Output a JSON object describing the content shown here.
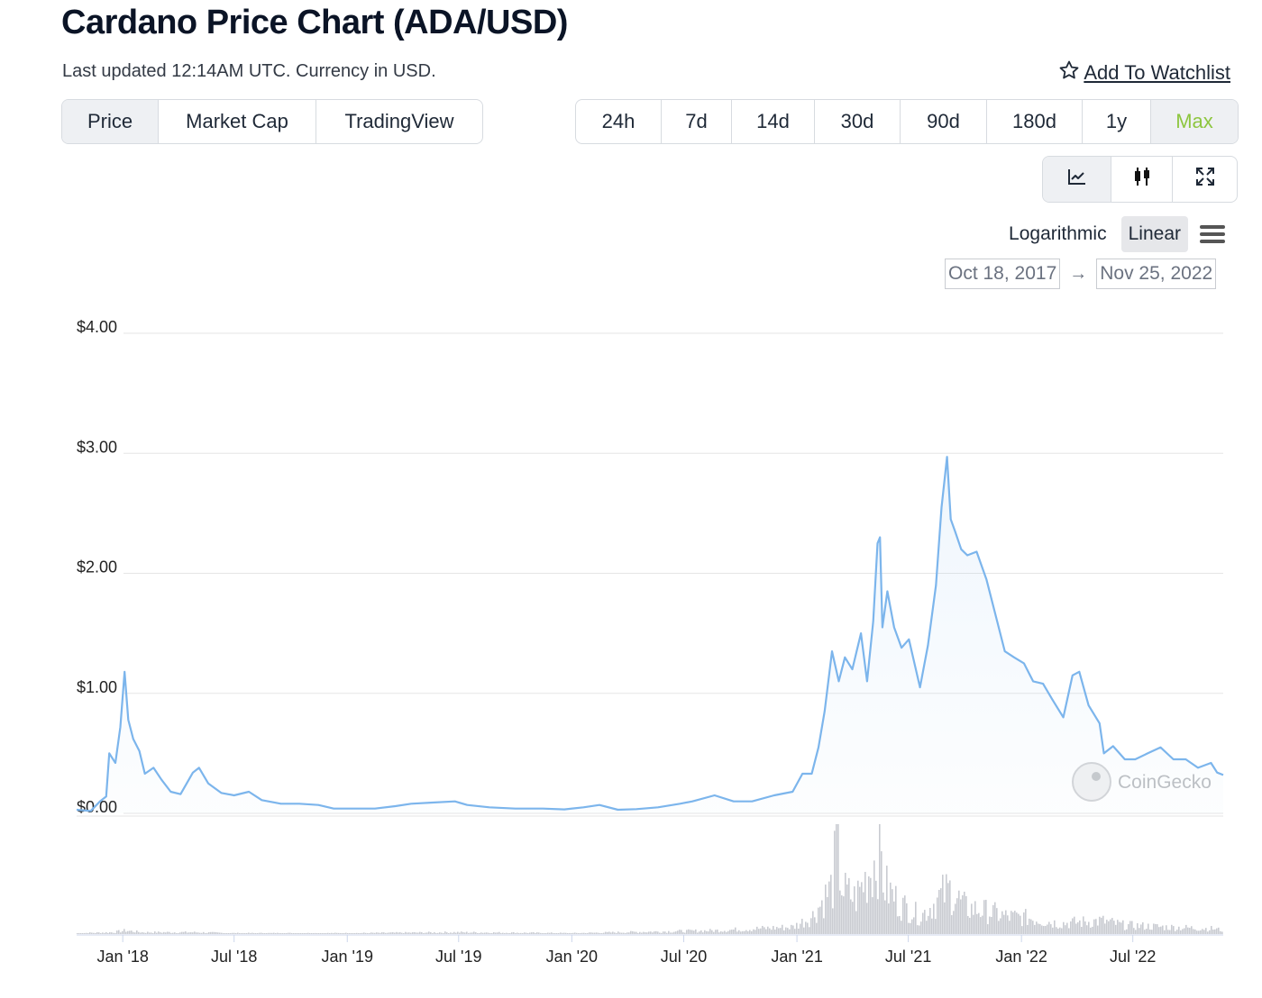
{
  "header": {
    "title": "Cardano Price Chart (ADA/USD)",
    "subtitle": "Last updated 12:14AM UTC. Currency in USD.",
    "watchlist_label": "Add To Watchlist"
  },
  "chart_type_tabs": [
    {
      "label": "Price",
      "active": true
    },
    {
      "label": "Market Cap",
      "active": false
    },
    {
      "label": "TradingView",
      "active": false
    }
  ],
  "range_tabs": [
    {
      "label": "24h",
      "active": false
    },
    {
      "label": "7d",
      "active": false
    },
    {
      "label": "14d",
      "active": false
    },
    {
      "label": "30d",
      "active": false
    },
    {
      "label": "90d",
      "active": false
    },
    {
      "label": "180d",
      "active": false
    },
    {
      "label": "1y",
      "active": false
    },
    {
      "label": "Max",
      "active": true
    }
  ],
  "tools": [
    {
      "icon": "line-chart-icon",
      "active": true
    },
    {
      "icon": "candlestick-icon",
      "active": false
    },
    {
      "icon": "fullscreen-icon",
      "active": false
    }
  ],
  "scale": {
    "logarithmic_label": "Logarithmic",
    "linear_label": "Linear",
    "selected": "Linear"
  },
  "date_range": {
    "from": "Oct 18, 2017",
    "arrow": "→",
    "to": "Nov 25, 2022"
  },
  "colors": {
    "line": "#7cb5ec",
    "volume": "#c9cbd1",
    "active_range": "#8dc63f",
    "grid": "#e6e6e6"
  },
  "chart_data": {
    "type": "line",
    "ylim": [
      0,
      4
    ],
    "y_ticks": [
      "$0.00",
      "$1.00",
      "$2.00",
      "$3.00",
      "$4.00"
    ],
    "y_tick_values": [
      0,
      1,
      2,
      3,
      4
    ],
    "xlim": [
      "2017-10-18",
      "2022-11-25"
    ],
    "x_ticks": [
      {
        "label": "Jan '18",
        "date": "2018-01-01"
      },
      {
        "label": "Jul '18",
        "date": "2018-07-01"
      },
      {
        "label": "Jan '19",
        "date": "2019-01-01"
      },
      {
        "label": "Jul '19",
        "date": "2019-07-01"
      },
      {
        "label": "Jan '20",
        "date": "2020-01-01"
      },
      {
        "label": "Jul '20",
        "date": "2020-07-01"
      },
      {
        "label": "Jan '21",
        "date": "2021-01-01"
      },
      {
        "label": "Jul '21",
        "date": "2021-07-01"
      },
      {
        "label": "Jan '22",
        "date": "2022-01-01"
      },
      {
        "label": "Jul '22",
        "date": "2022-07-01"
      }
    ],
    "watermark": "CoinGecko",
    "series": [
      {
        "values": [
          [
            "2017-10-18",
            0.03
          ],
          [
            "2017-11-10",
            0.02
          ],
          [
            "2017-11-25",
            0.1
          ],
          [
            "2017-12-05",
            0.14
          ],
          [
            "2017-12-10",
            0.5
          ],
          [
            "2017-12-20",
            0.42
          ],
          [
            "2017-12-28",
            0.72
          ],
          [
            "2018-01-04",
            1.18
          ],
          [
            "2018-01-10",
            0.78
          ],
          [
            "2018-01-18",
            0.62
          ],
          [
            "2018-01-28",
            0.52
          ],
          [
            "2018-02-06",
            0.33
          ],
          [
            "2018-02-20",
            0.38
          ],
          [
            "2018-03-05",
            0.28
          ],
          [
            "2018-03-20",
            0.18
          ],
          [
            "2018-04-05",
            0.16
          ],
          [
            "2018-04-25",
            0.34
          ],
          [
            "2018-05-05",
            0.38
          ],
          [
            "2018-05-20",
            0.25
          ],
          [
            "2018-06-10",
            0.17
          ],
          [
            "2018-07-01",
            0.15
          ],
          [
            "2018-07-25",
            0.18
          ],
          [
            "2018-08-15",
            0.11
          ],
          [
            "2018-09-15",
            0.08
          ],
          [
            "2018-10-15",
            0.08
          ],
          [
            "2018-11-15",
            0.07
          ],
          [
            "2018-12-10",
            0.04
          ],
          [
            "2019-01-01",
            0.04
          ],
          [
            "2019-02-15",
            0.04
          ],
          [
            "2019-03-20",
            0.06
          ],
          [
            "2019-04-15",
            0.08
          ],
          [
            "2019-05-20",
            0.09
          ],
          [
            "2019-06-25",
            0.1
          ],
          [
            "2019-07-15",
            0.07
          ],
          [
            "2019-08-20",
            0.05
          ],
          [
            "2019-10-01",
            0.04
          ],
          [
            "2019-11-15",
            0.04
          ],
          [
            "2019-12-20",
            0.033
          ],
          [
            "2020-01-20",
            0.05
          ],
          [
            "2020-02-15",
            0.07
          ],
          [
            "2020-03-16",
            0.03
          ],
          [
            "2020-04-15",
            0.035
          ],
          [
            "2020-05-20",
            0.05
          ],
          [
            "2020-06-25",
            0.08
          ],
          [
            "2020-07-15",
            0.1
          ],
          [
            "2020-08-20",
            0.15
          ],
          [
            "2020-09-20",
            0.1
          ],
          [
            "2020-10-20",
            0.1
          ],
          [
            "2020-11-25",
            0.15
          ],
          [
            "2020-12-25",
            0.18
          ],
          [
            "2021-01-10",
            0.33
          ],
          [
            "2021-01-25",
            0.33
          ],
          [
            "2021-02-05",
            0.55
          ],
          [
            "2021-02-15",
            0.85
          ],
          [
            "2021-02-27",
            1.35
          ],
          [
            "2021-03-10",
            1.1
          ],
          [
            "2021-03-20",
            1.3
          ],
          [
            "2021-04-01",
            1.2
          ],
          [
            "2021-04-15",
            1.5
          ],
          [
            "2021-04-25",
            1.1
          ],
          [
            "2021-05-05",
            1.6
          ],
          [
            "2021-05-12",
            2.25
          ],
          [
            "2021-05-16",
            2.3
          ],
          [
            "2021-05-20",
            1.55
          ],
          [
            "2021-05-28",
            1.85
          ],
          [
            "2021-06-08",
            1.55
          ],
          [
            "2021-06-20",
            1.38
          ],
          [
            "2021-07-02",
            1.45
          ],
          [
            "2021-07-20",
            1.05
          ],
          [
            "2021-08-02",
            1.4
          ],
          [
            "2021-08-15",
            1.9
          ],
          [
            "2021-08-24",
            2.55
          ],
          [
            "2021-09-02",
            2.97
          ],
          [
            "2021-09-08",
            2.45
          ],
          [
            "2021-09-15",
            2.35
          ],
          [
            "2021-09-25",
            2.2
          ],
          [
            "2021-10-05",
            2.15
          ],
          [
            "2021-10-20",
            2.18
          ],
          [
            "2021-11-05",
            1.95
          ],
          [
            "2021-11-20",
            1.65
          ],
          [
            "2021-12-05",
            1.35
          ],
          [
            "2021-12-20",
            1.3
          ],
          [
            "2022-01-05",
            1.25
          ],
          [
            "2022-01-20",
            1.1
          ],
          [
            "2022-02-05",
            1.08
          ],
          [
            "2022-02-20",
            0.95
          ],
          [
            "2022-03-10",
            0.8
          ],
          [
            "2022-03-25",
            1.15
          ],
          [
            "2022-04-05",
            1.18
          ],
          [
            "2022-04-20",
            0.9
          ],
          [
            "2022-05-08",
            0.75
          ],
          [
            "2022-05-15",
            0.5
          ],
          [
            "2022-05-30",
            0.56
          ],
          [
            "2022-06-18",
            0.45
          ],
          [
            "2022-07-05",
            0.45
          ],
          [
            "2022-07-25",
            0.5
          ],
          [
            "2022-08-15",
            0.55
          ],
          [
            "2022-09-05",
            0.45
          ],
          [
            "2022-09-25",
            0.45
          ],
          [
            "2022-10-15",
            0.38
          ],
          [
            "2022-11-05",
            0.42
          ],
          [
            "2022-11-15",
            0.34
          ],
          [
            "2022-11-25",
            0.32
          ]
        ]
      }
    ],
    "volume": [
      [
        "2017-10-18",
        0.01
      ],
      [
        "2017-12-15",
        0.02
      ],
      [
        "2018-01-04",
        0.04
      ],
      [
        "2018-02-01",
        0.02
      ],
      [
        "2018-04-25",
        0.02
      ],
      [
        "2018-07-01",
        0.01
      ],
      [
        "2019-01-01",
        0.01
      ],
      [
        "2019-06-25",
        0.02
      ],
      [
        "2020-01-01",
        0.01
      ],
      [
        "2020-08-20",
        0.04
      ],
      [
        "2020-12-25",
        0.08
      ],
      [
        "2021-01-25",
        0.2
      ],
      [
        "2021-02-27",
        0.55
      ],
      [
        "2021-03-05",
        1.0
      ],
      [
        "2021-03-15",
        0.5
      ],
      [
        "2021-04-05",
        0.4
      ],
      [
        "2021-05-15",
        0.95
      ],
      [
        "2021-05-22",
        0.55
      ],
      [
        "2021-06-15",
        0.35
      ],
      [
        "2021-07-20",
        0.2
      ],
      [
        "2021-08-25",
        0.45
      ],
      [
        "2021-09-05",
        0.5
      ],
      [
        "2021-10-01",
        0.3
      ],
      [
        "2021-11-10",
        0.25
      ],
      [
        "2021-12-05",
        0.2
      ],
      [
        "2022-01-15",
        0.18
      ],
      [
        "2022-03-01",
        0.12
      ],
      [
        "2022-05-10",
        0.15
      ],
      [
        "2022-06-15",
        0.1
      ],
      [
        "2022-08-20",
        0.08
      ],
      [
        "2022-11-10",
        0.06
      ],
      [
        "2022-11-25",
        0.04
      ]
    ]
  }
}
